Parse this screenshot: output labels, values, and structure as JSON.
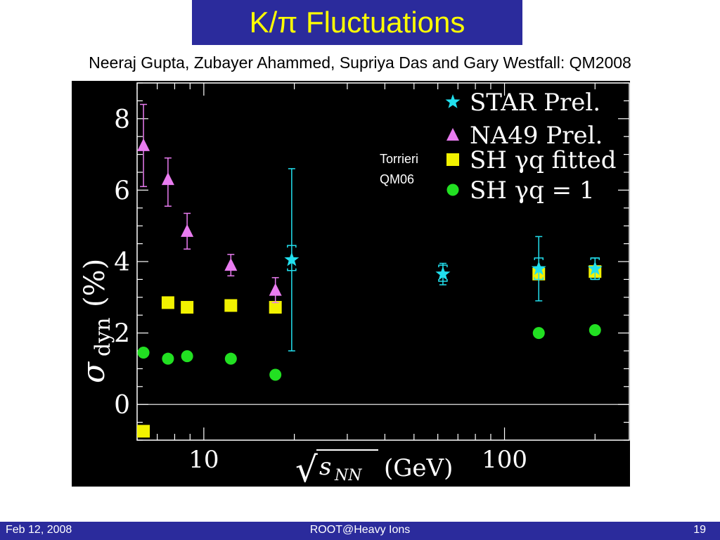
{
  "slide": {
    "title": "K/π Fluctuations",
    "authors": "Neeraj Gupta, Zubayer Ahammed, Supriya Das and Gary Westfall: QM2008",
    "annotation_line1": "Torrieri",
    "annotation_line2": "QM06"
  },
  "footer": {
    "date": "Feb 12, 2008",
    "center": "ROOT@Heavy Ions",
    "page": "19"
  },
  "colors": {
    "star": "#22e0ee",
    "na49": "#e97cf0",
    "sh_fitted": "#f2f200",
    "sh_one": "#22e022",
    "title_bg": "#2b2b9c",
    "title_text": "#ffff00",
    "chart_bg": "#000000"
  },
  "chart_data": {
    "type": "scatter",
    "xscale": "log",
    "xlim": [
      6,
      260
    ],
    "ylim": [
      -1,
      9
    ],
    "xlabel_radical": "√",
    "xlabel_s": "s",
    "xlabel_sub": "NN",
    "xlabel_unit": "(GeV)",
    "ylabel_sigma": "σ",
    "ylabel_sub": "dyn",
    "ylabel_unit": "(%)",
    "y_ticks": [
      0,
      2,
      4,
      6,
      8
    ],
    "y_tick_labels": [
      "0",
      "2",
      "4",
      "6",
      "8"
    ],
    "x_tick_labels": [
      {
        "x": 10,
        "label": "10"
      },
      {
        "x": 100,
        "label": "100"
      }
    ],
    "legend": [
      {
        "marker": "star",
        "label": "STAR Prel."
      },
      {
        "marker": "triangle",
        "label": "NA49 Prel."
      },
      {
        "marker": "square",
        "label": "SH γq fitted"
      },
      {
        "marker": "circle",
        "label": "SH γq = 1"
      }
    ],
    "series": [
      {
        "name": "STAR Prel.",
        "marker": "star",
        "x": [
          19.6,
          62.4,
          130,
          200
        ],
        "y": [
          4.05,
          3.65,
          3.8,
          3.8
        ],
        "err_low": [
          2.55,
          0.3,
          0.9,
          0.3
        ],
        "err_high": [
          2.55,
          0.3,
          0.9,
          0.3
        ],
        "sys_low": [
          0.3,
          0.2,
          0.3,
          0.3
        ],
        "sys_high": [
          0.4,
          0.25,
          0.3,
          0.3
        ]
      },
      {
        "name": "NA49 Prel.",
        "marker": "triangle",
        "x": [
          6.3,
          7.6,
          8.8,
          12.3,
          17.3
        ],
        "y": [
          7.25,
          6.3,
          4.85,
          3.9,
          3.2
        ],
        "err_low": [
          1.15,
          0.75,
          0.5,
          0.3,
          0.35
        ],
        "err_high": [
          1.15,
          0.6,
          0.5,
          0.3,
          0.35
        ]
      },
      {
        "name": "SH γq fitted",
        "marker": "square",
        "x": [
          6.3,
          7.6,
          8.8,
          12.3,
          17.3,
          130,
          200
        ],
        "y": [
          -0.75,
          2.85,
          2.72,
          2.77,
          2.72,
          3.65,
          3.72
        ]
      },
      {
        "name": "SH γq = 1",
        "marker": "circle",
        "x": [
          6.3,
          7.6,
          8.8,
          12.3,
          17.3,
          130,
          200
        ],
        "y": [
          1.45,
          1.28,
          1.35,
          1.28,
          0.83,
          2.0,
          2.08
        ]
      }
    ]
  }
}
